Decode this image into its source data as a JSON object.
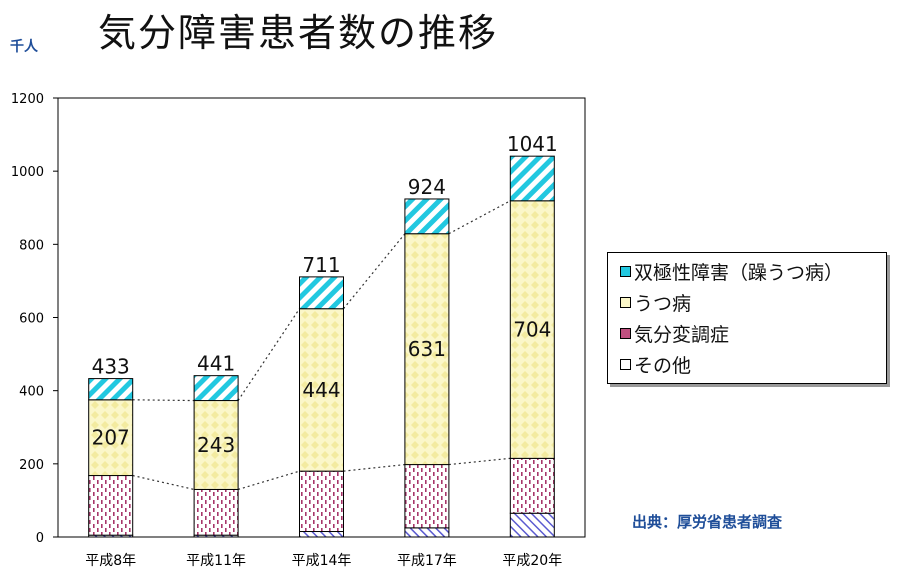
{
  "title": "気分障害患者数の推移",
  "unit_label": "千人",
  "source": "出典：厚労省患者調査",
  "chart_data": {
    "type": "bar",
    "stacked": true,
    "categories": [
      "平成8年",
      "平成11年",
      "平成14年",
      "平成17年",
      "平成20年"
    ],
    "series": [
      {
        "name": "その他",
        "values": [
          5,
          5,
          15,
          25,
          65
        ],
        "color": "#c9c9f0"
      },
      {
        "name": "気分変調症",
        "values": [
          163,
          125,
          165,
          173,
          150
        ],
        "color": "#f3e6ee"
      },
      {
        "name": "うつ病",
        "values": [
          207,
          243,
          444,
          631,
          704
        ],
        "color": "#fbf7c9"
      },
      {
        "name": "双極性障害（躁うつ病）",
        "values": [
          58,
          68,
          87,
          95,
          122
        ],
        "color": "#22c8e0"
      }
    ],
    "totals": [
      433,
      441,
      711,
      924,
      1041
    ],
    "data_labels": {
      "うつ病": [
        207,
        243,
        444,
        631,
        704
      ]
    },
    "ylim": [
      0,
      1200
    ],
    "yticks": [
      0,
      200,
      400,
      600,
      800,
      1000,
      1200
    ],
    "xlabel": "",
    "ylabel": "千人",
    "grid": false,
    "legend_position": "right"
  }
}
